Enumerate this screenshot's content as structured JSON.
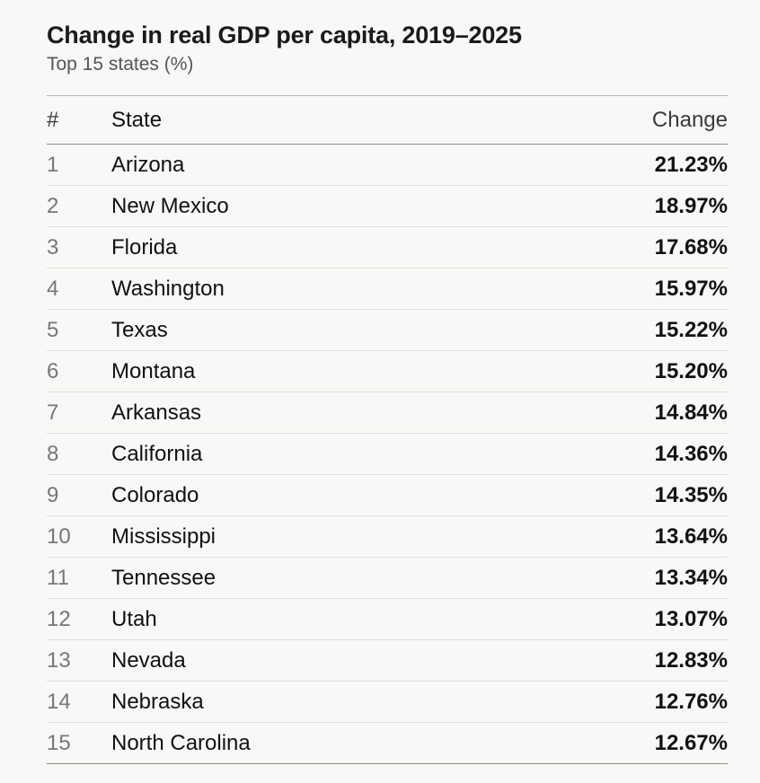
{
  "chart_data": {
    "type": "table",
    "title": "Change in real GDP per capita, 2019–2025",
    "subtitle": "Top 15 states (%)",
    "columns": [
      "#",
      "State",
      "Change"
    ],
    "rows": [
      {
        "rank": "1",
        "state": "Arizona",
        "change": "21.23%",
        "value": 21.23
      },
      {
        "rank": "2",
        "state": "New Mexico",
        "change": "18.97%",
        "value": 18.97
      },
      {
        "rank": "3",
        "state": "Florida",
        "change": "17.68%",
        "value": 17.68
      },
      {
        "rank": "4",
        "state": "Washington",
        "change": "15.97%",
        "value": 15.97
      },
      {
        "rank": "5",
        "state": "Texas",
        "change": "15.22%",
        "value": 15.22
      },
      {
        "rank": "6",
        "state": "Montana",
        "change": "15.20%",
        "value": 15.2
      },
      {
        "rank": "7",
        "state": "Arkansas",
        "change": "14.84%",
        "value": 14.84
      },
      {
        "rank": "8",
        "state": "California",
        "change": "14.36%",
        "value": 14.36
      },
      {
        "rank": "9",
        "state": "Colorado",
        "change": "14.35%",
        "value": 14.35
      },
      {
        "rank": "10",
        "state": "Mississippi",
        "change": "13.64%",
        "value": 13.64
      },
      {
        "rank": "11",
        "state": "Tennessee",
        "change": "13.34%",
        "value": 13.34
      },
      {
        "rank": "12",
        "state": "Utah",
        "change": "13.07%",
        "value": 13.07
      },
      {
        "rank": "13",
        "state": "Nevada",
        "change": "12.83%",
        "value": 12.83
      },
      {
        "rank": "14",
        "state": "Nebraska",
        "change": "12.76%",
        "value": 12.76
      },
      {
        "rank": "15",
        "state": "North Carolina",
        "change": "12.67%",
        "value": 12.67
      }
    ]
  }
}
